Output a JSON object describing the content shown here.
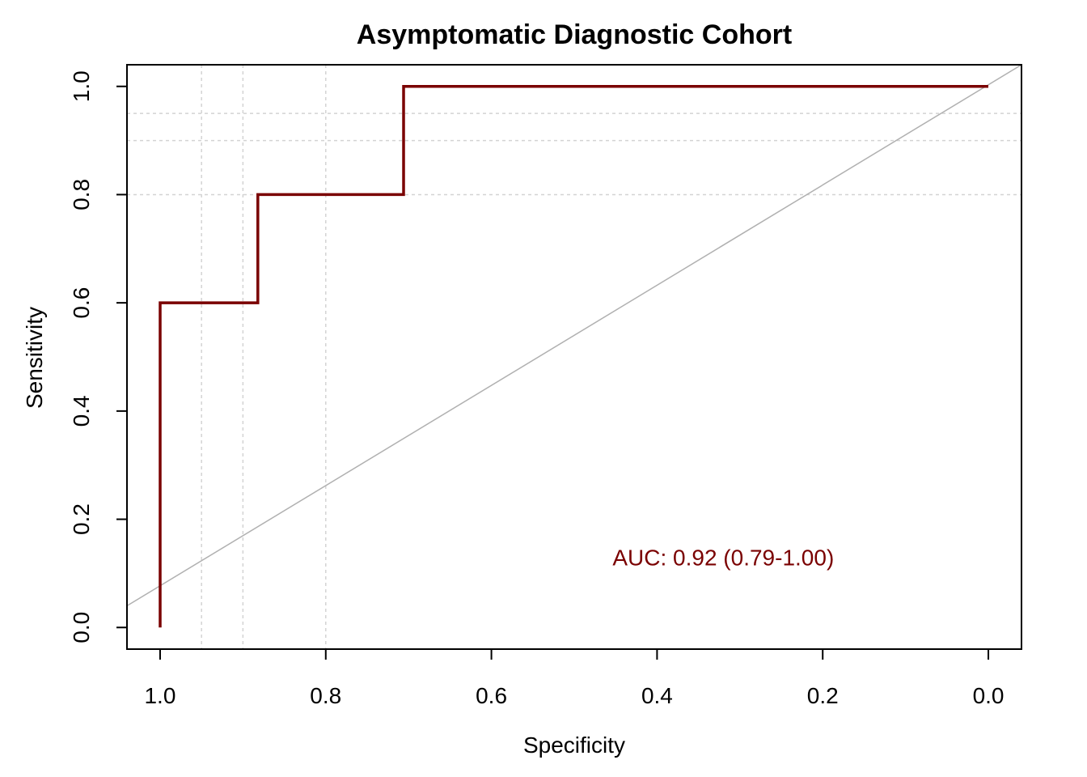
{
  "chart_data": {
    "type": "line",
    "title": "Asymptomatic Diagnostic Cohort",
    "xlabel": "Specificity",
    "ylabel": "Sensitivity",
    "x_reversed": true,
    "xlim": [
      1.04,
      -0.04
    ],
    "ylim": [
      -0.04,
      1.04
    ],
    "x_ticks": [
      1.0,
      0.8,
      0.6,
      0.4,
      0.2,
      0.0
    ],
    "x_tick_labels": [
      "1.0",
      "0.8",
      "0.6",
      "0.4",
      "0.2",
      "0.0"
    ],
    "y_ticks": [
      0.0,
      0.2,
      0.4,
      0.6,
      0.8,
      1.0
    ],
    "y_tick_labels": [
      "0.0",
      "0.2",
      "0.4",
      "0.6",
      "0.8",
      "1.0"
    ],
    "grid": true,
    "grid_x": [
      0.95,
      0.9,
      0.8
    ],
    "grid_y": [
      0.8,
      0.9,
      0.95
    ],
    "series": [
      {
        "color": "#7a0000",
        "points": [
          {
            "specificity": 1.0,
            "sensitivity": 0.0
          },
          {
            "specificity": 1.0,
            "sensitivity": 0.6
          },
          {
            "specificity": 0.882,
            "sensitivity": 0.6
          },
          {
            "specificity": 0.882,
            "sensitivity": 0.8
          },
          {
            "specificity": 0.706,
            "sensitivity": 0.8
          },
          {
            "specificity": 0.706,
            "sensitivity": 1.0
          },
          {
            "specificity": 0.0,
            "sensitivity": 1.0
          }
        ]
      }
    ],
    "reference_line": {
      "from": [
        1.0,
        0.0
      ],
      "to": [
        0.0,
        1.0
      ],
      "color": "#b0b0b0"
    },
    "annotation": {
      "text": "AUC: 0.92 (0.79-1.00)",
      "x": 0.32,
      "y": 0.13,
      "color": "#7a0000"
    }
  }
}
